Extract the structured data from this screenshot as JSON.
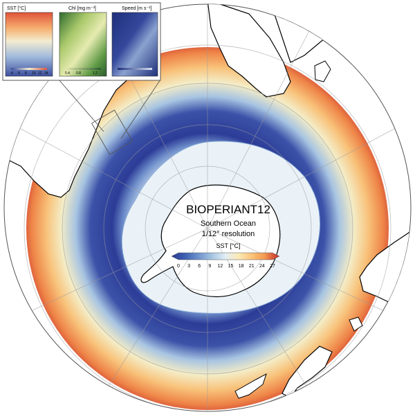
{
  "map": {
    "title": "BIOPERIANT12",
    "subtitle_line1": "Southern Ocean",
    "subtitle_line2": "1/12° resolution",
    "colorbar": {
      "label": "SST [°C]",
      "ticks": [
        "0",
        "3",
        "6",
        "9",
        "12",
        "15",
        "18",
        "21",
        "24",
        "27"
      ],
      "colors": [
        "#2b3a8f",
        "#3d5fb0",
        "#6f93cc",
        "#a9c7e3",
        "#e2eef5",
        "#fbe9b6",
        "#fbc57a",
        "#f49a52",
        "#e2623a",
        "#c22b2b"
      ]
    }
  },
  "insets": [
    {
      "title": "SST [°C]",
      "ticks": [
        "4",
        "6",
        "8",
        "10",
        "12",
        "14"
      ]
    },
    {
      "title": "Chl [mg m⁻³]",
      "ticks": [
        "0.4",
        "0.8",
        "1.2"
      ]
    },
    {
      "title": "Speed [m s⁻¹]",
      "ticks": []
    }
  ],
  "colors": {
    "ice": "#eaf2f8",
    "ocean_cold": "#2e3f99",
    "ocean_warm": "#f28a4a",
    "land": "#ffffff"
  }
}
